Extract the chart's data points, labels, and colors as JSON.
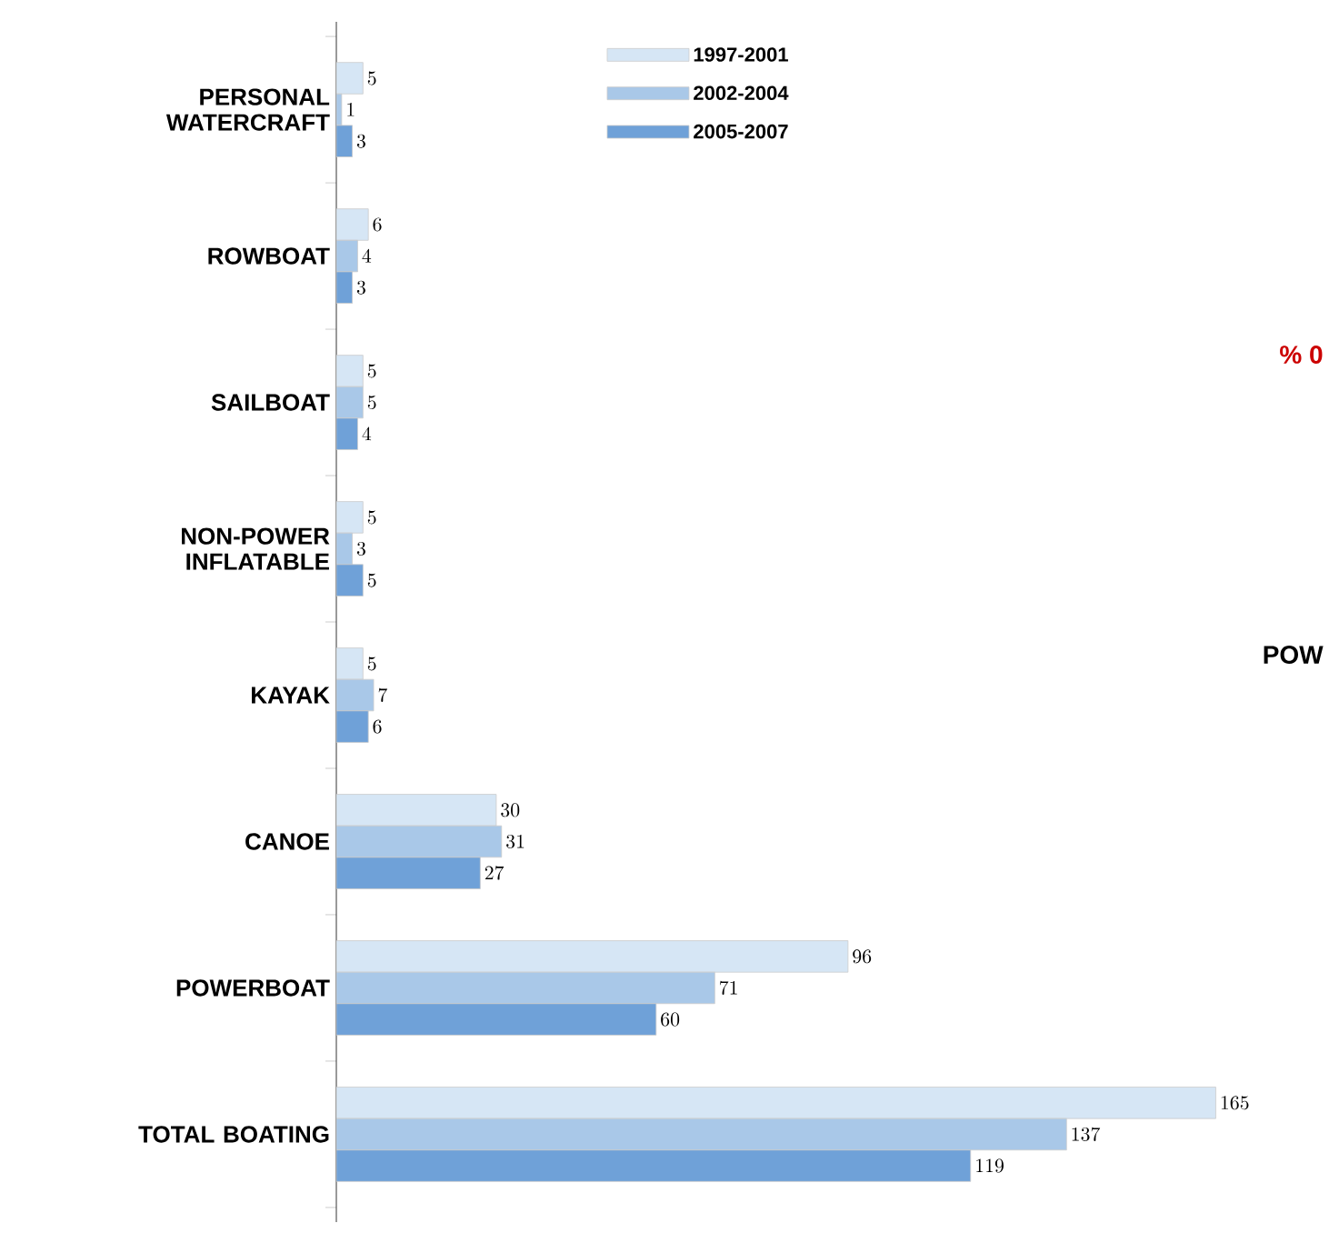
{
  "chart_data": {
    "type": "bar",
    "orientation": "horizontal",
    "categories": [
      "PERSONAL WATERCRAFT",
      "ROWBOAT",
      "SAILBOAT",
      "NON-POWER INFLATABLE",
      "KAYAK",
      "CANOE",
      "POWERBOAT",
      "TOTAL BOATING"
    ],
    "series": [
      {
        "name": "1997-2001",
        "color": "#d6e6f5",
        "values": [
          5,
          6,
          5,
          5,
          5,
          30,
          96,
          165
        ]
      },
      {
        "name": "2002-2004",
        "color": "#a9c8e8",
        "values": [
          1,
          4,
          5,
          3,
          7,
          31,
          71,
          137
        ]
      },
      {
        "name": "2005-2007",
        "color": "#6fa1d8",
        "values": [
          3,
          3,
          4,
          5,
          6,
          27,
          60,
          119
        ]
      }
    ],
    "data_labels": true,
    "legend": "top",
    "annotations": [
      "% 0",
      "POW"
    ]
  }
}
